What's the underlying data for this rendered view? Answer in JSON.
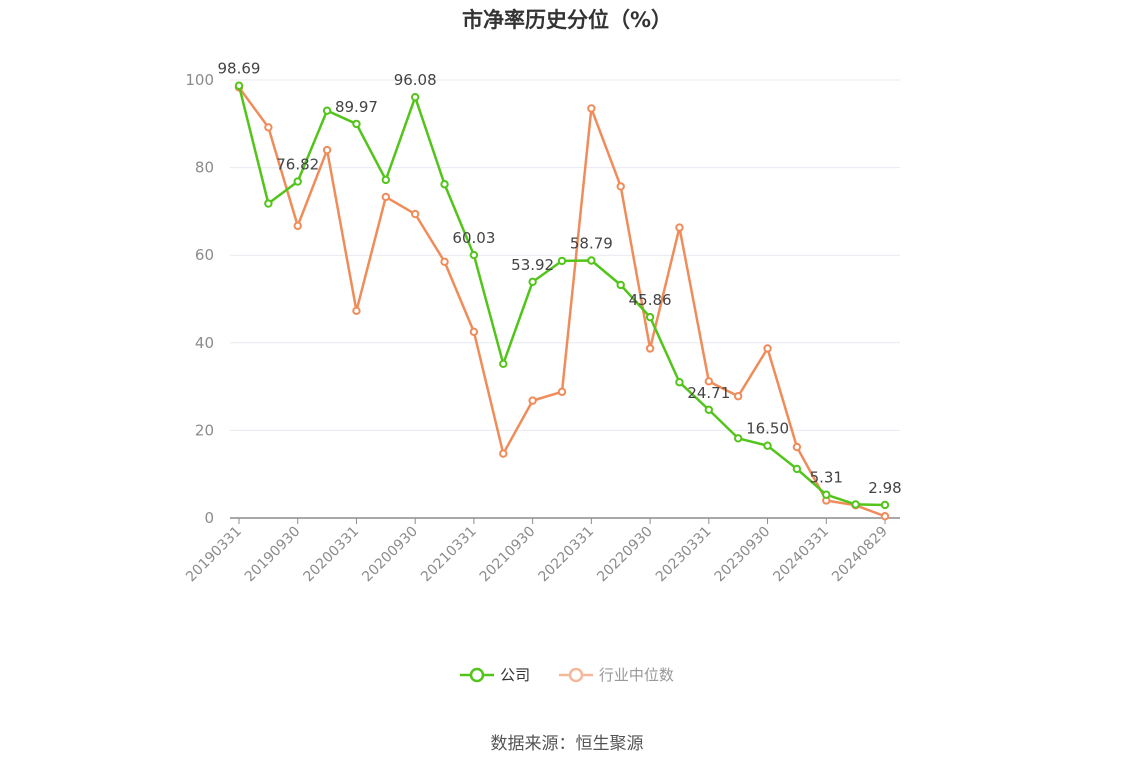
{
  "chart_data": {
    "type": "line",
    "title": "市净率历史分位（%）",
    "xlabel": "",
    "ylabel": "",
    "ylim": [
      0,
      100
    ],
    "yticks": [
      "0",
      "20",
      "40",
      "60",
      "80",
      "100"
    ],
    "x": [
      "20190331",
      "20190630",
      "20190930",
      "20191231",
      "20200331",
      "20200630",
      "20200930",
      "20201231",
      "20210331",
      "20210630",
      "20210930",
      "20211231",
      "20220331",
      "20220630",
      "20220930",
      "20221231",
      "20230331",
      "20230630",
      "20230930",
      "20231231",
      "20240331",
      "20240630",
      "20240829"
    ],
    "xtick_labels": [
      "20190331",
      "20190930",
      "20200331",
      "20200930",
      "20210331",
      "20210930",
      "20220331",
      "20220930",
      "20230331",
      "20230930",
      "20240331",
      "20240829"
    ],
    "grid": true,
    "legend_position": "bottom",
    "series": [
      {
        "name": "公司",
        "color": "#52c41a",
        "values": [
          98.69,
          71.8,
          76.82,
          93.0,
          89.97,
          77.2,
          96.08,
          76.2,
          60.03,
          35.2,
          53.92,
          58.7,
          58.79,
          53.2,
          45.86,
          31.0,
          24.71,
          18.2,
          16.5,
          11.2,
          5.31,
          3.1,
          2.98
        ],
        "labels": [
          "98.69",
          "",
          "76.82",
          "",
          "89.97",
          "",
          "96.08",
          "",
          "60.03",
          "",
          "53.92",
          "",
          "58.79",
          "",
          "45.86",
          "",
          "24.71",
          "",
          "16.50",
          "",
          "5.31",
          "",
          "2.98"
        ]
      },
      {
        "name": "行业中位数",
        "color": "#f08c5a",
        "values": [
          98.3,
          89.2,
          66.7,
          84.0,
          47.3,
          73.3,
          69.4,
          58.5,
          42.5,
          14.7,
          26.8,
          28.8,
          93.5,
          75.7,
          38.7,
          66.3,
          31.2,
          27.8,
          38.7,
          16.2,
          4.0,
          2.9,
          0.4
        ]
      }
    ]
  },
  "source": "数据来源：恒生聚源"
}
